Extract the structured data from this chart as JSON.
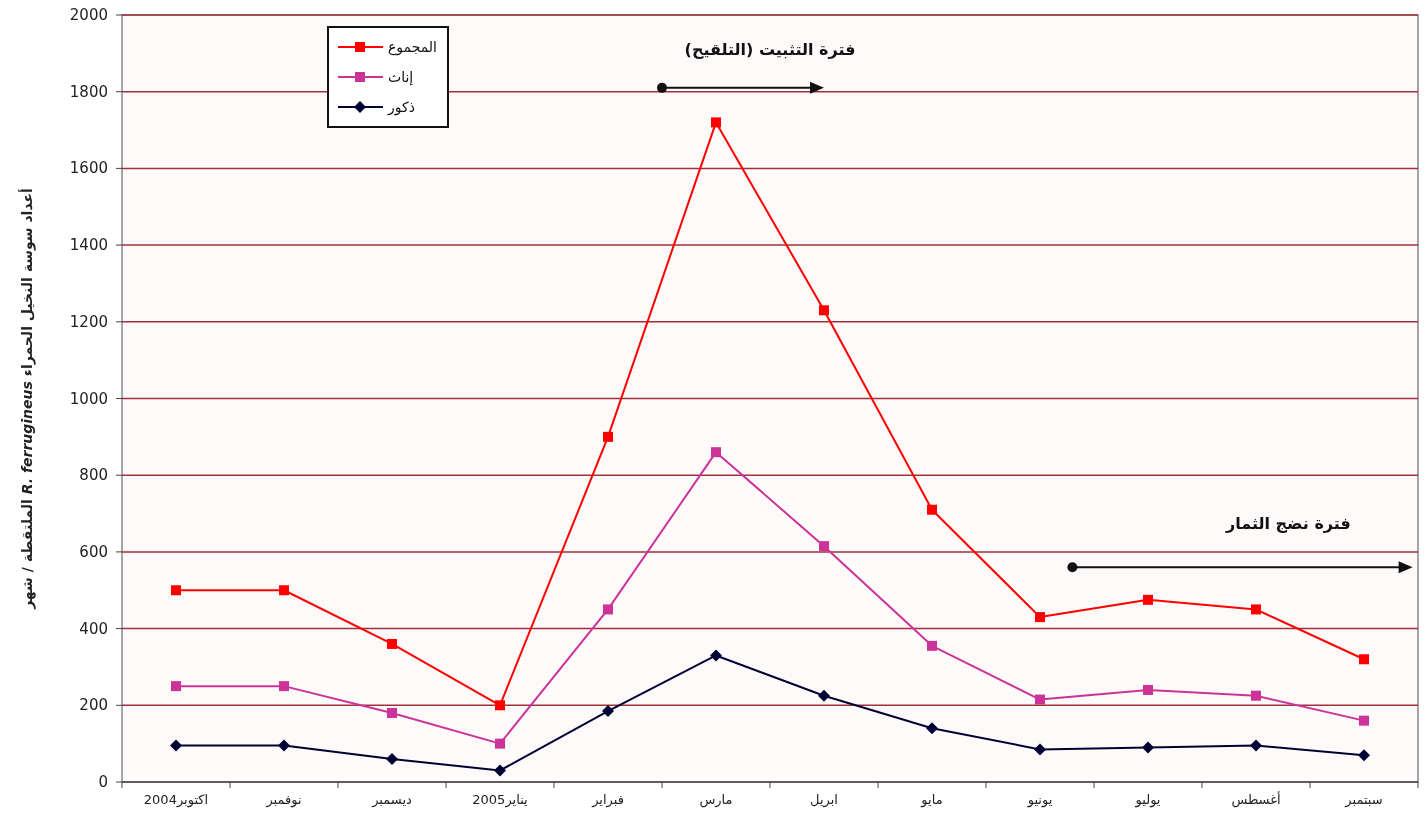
{
  "chart_data": {
    "type": "line",
    "ylabel": "أعداد سوسة النخيل الحمراء *R. ferrugineus* الملتقطة / شهر",
    "categories": [
      "اكتوبر2004",
      "نوفمبر",
      "ديسمبر",
      "يناير2005",
      "فبراير",
      "مارس",
      "ابريل",
      "مايو",
      "يونيو",
      "يوليو",
      "أغسطس",
      "سبتمبر"
    ],
    "series": [
      {
        "name": "المجموع",
        "color": "#ff0000",
        "marker": "square",
        "values": [
          500,
          500,
          360,
          200,
          900,
          1720,
          1230,
          710,
          430,
          475,
          450,
          320
        ]
      },
      {
        "name": "إناث",
        "color": "#cc3399",
        "marker": "square",
        "values": [
          250,
          250,
          180,
          100,
          450,
          860,
          615,
          355,
          215,
          240,
          225,
          160
        ]
      },
      {
        "name": "ذكور",
        "color": "#000033",
        "marker": "diamond",
        "values": [
          95,
          95,
          60,
          30,
          185,
          330,
          225,
          140,
          85,
          90,
          95,
          70
        ]
      }
    ],
    "ylim": [
      0,
      2000
    ],
    "yticks": [
      0,
      200,
      400,
      600,
      800,
      1000,
      1200,
      1400,
      1600,
      1800,
      2000
    ],
    "grid": "y",
    "legend": "top left",
    "annotations": [
      "فترة التثبيت (التلقيح)",
      "فترة نضج الثمار"
    ]
  }
}
